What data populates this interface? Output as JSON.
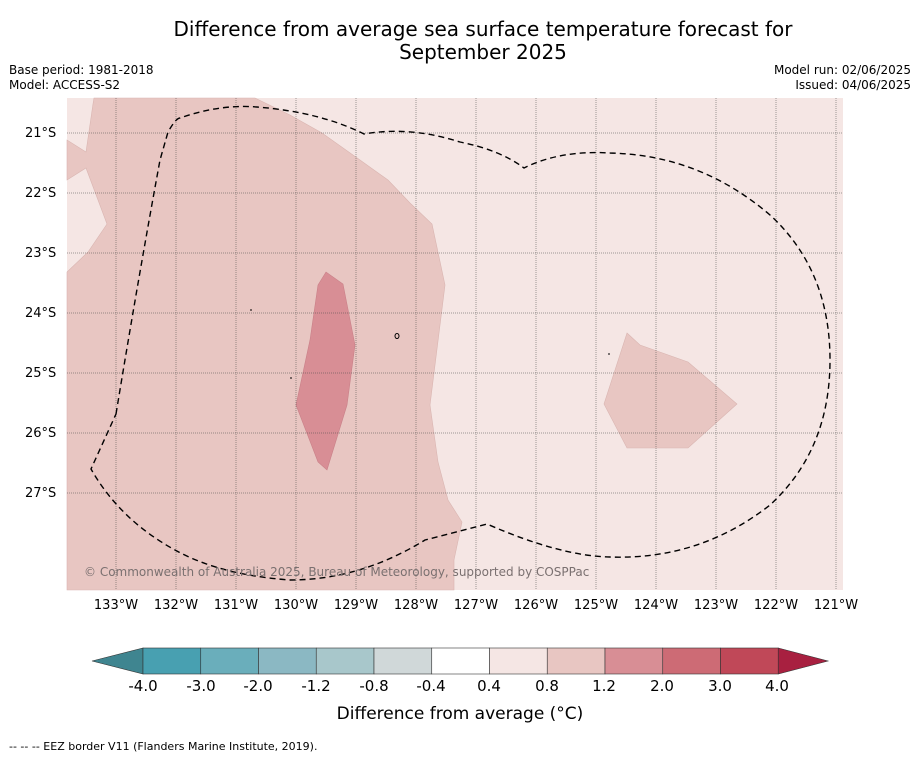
{
  "header": {
    "title_line1": "Difference from average sea surface temperature forecast for",
    "title_line2": "September 2025",
    "base_period": "Base period: 1981-2018",
    "model": "Model: ACCESS-S2",
    "model_run": "Model run: 02/06/2025",
    "issued": "Issued: 04/06/2025"
  },
  "map": {
    "lat_labels": [
      "21°S",
      "22°S",
      "23°S",
      "24°S",
      "25°S",
      "26°S",
      "27°S"
    ],
    "lon_labels": [
      "133°W",
      "132°W",
      "131°W",
      "130°W",
      "129°W",
      "128°W",
      "127°W",
      "126°W",
      "125°W",
      "124°W",
      "123°W",
      "122°W",
      "121°W"
    ],
    "copyright": "© Commonwealth of Australia 2025, Bureau of Meteorology, supported by COSPPac",
    "colors": {
      "background_anomaly_0_4_to_0_8": "#f5e6e4",
      "anomaly_0_8_to_1_2": "#e8c6c2",
      "anomaly_1_2_to_2_0": "#d88e95",
      "eez_border": "#000000"
    }
  },
  "colorbar": {
    "title": "Difference from average (°C)",
    "tick_labels": [
      "-4.0",
      "-3.0",
      "-2.0",
      "-1.2",
      "-0.8",
      "-0.4",
      "0.4",
      "0.8",
      "1.2",
      "2.0",
      "3.0",
      "4.0"
    ],
    "colors": [
      "#3f8590",
      "#48a0b1",
      "#6aaebb",
      "#8bb8c3",
      "#a8c7cb",
      "#d0d8d9",
      "#ffffff",
      "#f5e6e4",
      "#e8c6c2",
      "#d88e95",
      "#cd6b75",
      "#c04858",
      "#a82040"
    ]
  },
  "footnote": "-- -- -- EEZ border V11 (Flanders Marine Institute, 2019)."
}
